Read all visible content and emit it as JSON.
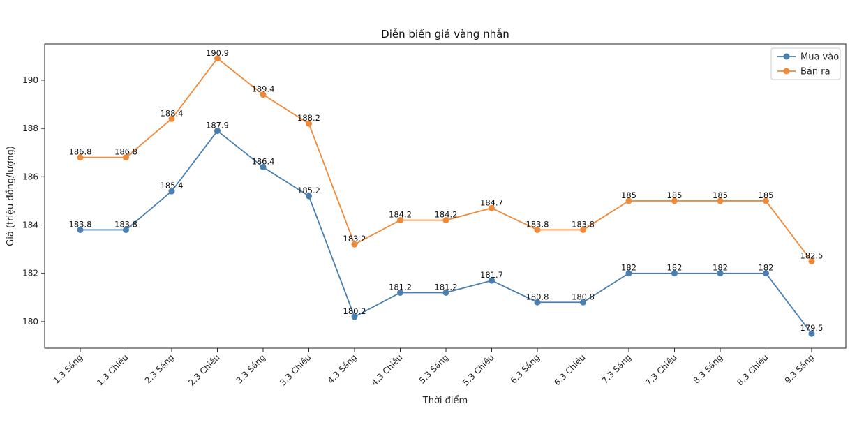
{
  "chart_data": {
    "type": "line",
    "title": "Diễn biến giá vàng nhẫn",
    "xlabel": "Thời điểm",
    "ylabel": "Giá (triệu đồng/lượng)",
    "ylim": [
      178.9,
      191.5
    ],
    "yticks": [
      180,
      182,
      184,
      186,
      188,
      190
    ],
    "legend_position": "top-right",
    "grid": false,
    "categories": [
      "1.3 Sáng",
      "1.3 Chiều",
      "2.3 Sáng",
      "2.3 Chiều",
      "3.3 Sáng",
      "3.3 Chiều",
      "4.3 Sáng",
      "4.3 Chiều",
      "5.3 Sáng",
      "5.3 Chiều",
      "6.3 Sáng",
      "6.3 Chiều",
      "7.3 Sáng",
      "7.3 Chiều",
      "8.3 Sáng",
      "8.3 Chiều",
      "9.3 Sáng"
    ],
    "series": [
      {
        "name": "Mua vào",
        "color": "#4a7fb0",
        "values": [
          183.8,
          183.8,
          185.4,
          187.9,
          186.4,
          185.2,
          180.2,
          181.2,
          181.2,
          181.7,
          180.8,
          180.8,
          182,
          182,
          182,
          182,
          179.5
        ]
      },
      {
        "name": "Bán ra",
        "color": "#ef8a3a",
        "values": [
          186.8,
          186.8,
          188.4,
          190.9,
          189.4,
          188.2,
          183.2,
          184.2,
          184.2,
          184.7,
          183.8,
          183.8,
          185,
          185,
          185,
          185,
          182.5
        ]
      }
    ]
  }
}
